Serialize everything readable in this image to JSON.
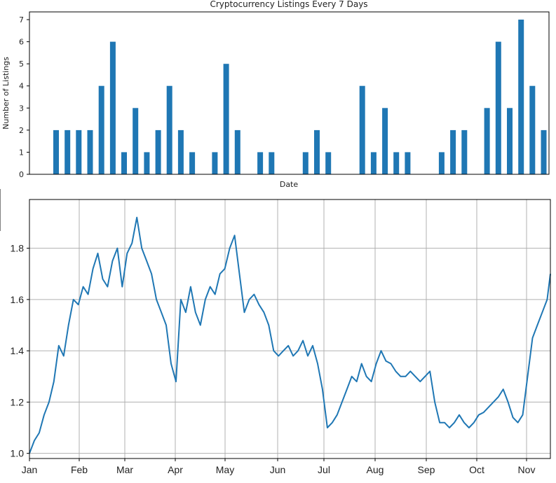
{
  "chart_data": [
    {
      "type": "bar",
      "title": "Cryptocurrency Listings Every 7 Days",
      "xlabel": "Date",
      "ylabel": "Number of Listings",
      "ylim": [
        0,
        7.35
      ],
      "yticks": [
        "0",
        "1",
        "2",
        "3",
        "4",
        "5",
        "6",
        "7"
      ],
      "grid": false,
      "color": "#1f77b4",
      "values": [
        2,
        2,
        2,
        2,
        4,
        6,
        1,
        3,
        1,
        2,
        4,
        2,
        1,
        0,
        1,
        5,
        2,
        0,
        1,
        1,
        0,
        0,
        1,
        2,
        1,
        0,
        0,
        4,
        1,
        3,
        1,
        1,
        0,
        0,
        1,
        2,
        2,
        0,
        3,
        6,
        3,
        7,
        4,
        2
      ]
    },
    {
      "type": "line",
      "title": "",
      "xlabel": "",
      "ylabel": "",
      "ylim": [
        0.98,
        1.99
      ],
      "yticks": [
        "1.0",
        "1.2",
        "1.4",
        "1.6",
        "1.8"
      ],
      "xticks": [
        "Jan",
        "Feb",
        "Mar",
        "Apr",
        "May",
        "Jun",
        "Jul",
        "Aug",
        "Sep",
        "Oct",
        "Nov"
      ],
      "grid": true,
      "color": "#1f77b4",
      "x": [
        0,
        3,
        6,
        9,
        12,
        15,
        18,
        21,
        24,
        27,
        30,
        33,
        36,
        39,
        42,
        45,
        48,
        51,
        54,
        57,
        60,
        63,
        66,
        69,
        72,
        75,
        78,
        81,
        84,
        87,
        90,
        93,
        96,
        99,
        102,
        105,
        108,
        111,
        114,
        117,
        120,
        123,
        126,
        129,
        132,
        135,
        138,
        141,
        144,
        147,
        150,
        153,
        156,
        159,
        162,
        165,
        168,
        171,
        174,
        177,
        180,
        183,
        186,
        189,
        192,
        195,
        198,
        201,
        204,
        207,
        210,
        213,
        216,
        219,
        222,
        225,
        228,
        231,
        234,
        237,
        240,
        243,
        246,
        249,
        252,
        255,
        258,
        261,
        264,
        267,
        270,
        273,
        276,
        279,
        282,
        285,
        288,
        291,
        294,
        297,
        300,
        303,
        306,
        309,
        312,
        315,
        318,
        320
      ],
      "y": [
        1.0,
        1.05,
        1.08,
        1.15,
        1.2,
        1.28,
        1.42,
        1.38,
        1.5,
        1.6,
        1.58,
        1.65,
        1.62,
        1.72,
        1.78,
        1.68,
        1.65,
        1.75,
        1.8,
        1.65,
        1.78,
        1.82,
        1.92,
        1.8,
        1.75,
        1.7,
        1.6,
        1.55,
        1.5,
        1.35,
        1.28,
        1.6,
        1.55,
        1.65,
        1.55,
        1.5,
        1.6,
        1.65,
        1.62,
        1.7,
        1.72,
        1.8,
        1.85,
        1.7,
        1.55,
        1.6,
        1.62,
        1.58,
        1.55,
        1.5,
        1.4,
        1.38,
        1.4,
        1.42,
        1.38,
        1.4,
        1.44,
        1.38,
        1.42,
        1.35,
        1.25,
        1.1,
        1.12,
        1.15,
        1.2,
        1.25,
        1.3,
        1.28,
        1.35,
        1.3,
        1.28,
        1.35,
        1.4,
        1.36,
        1.35,
        1.32,
        1.3,
        1.3,
        1.32,
        1.3,
        1.28,
        1.3,
        1.32,
        1.2,
        1.12,
        1.12,
        1.1,
        1.12,
        1.15,
        1.12,
        1.1,
        1.12,
        1.15,
        1.16,
        1.18,
        1.2,
        1.22,
        1.25,
        1.2,
        1.14,
        1.12,
        1.15,
        1.3,
        1.45,
        1.5,
        1.55,
        1.6,
        1.7
      ]
    }
  ]
}
